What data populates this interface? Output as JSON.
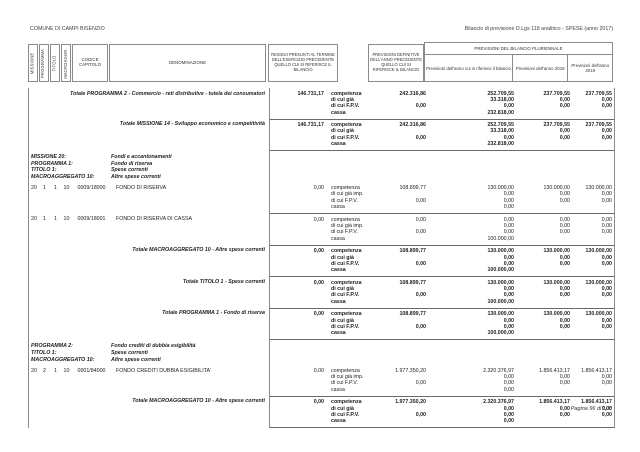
{
  "page": {
    "header_left": "COMUNE DI CAMPI BISENZIO",
    "header_right": "Bilancio di previsione D.Lgs 118 analitico - SPESE (anno 2017)",
    "footer": "Pagina 96 di 103"
  },
  "table": {
    "columns": {
      "missione": "MISSIONE",
      "programma": "PROGRAMMA",
      "titolo": "TITOLO",
      "macroaggr": "MACROAGGR.",
      "codice": "CODICE CAPITOLO",
      "denominazione": "DENOMINAZIONE",
      "residui": "RESIDUI PRESUNTI AL TERMINE DELL'ESERCIZIO PRECEDENTE QUELLO CUI SI RIFERISCE IL BILANCIO",
      "previsioni_definitive": "PREVISIONI DEFINITIVE DELL'ANNO PRECEDENTE QUELLO CUI SI RIFERISCE IL BILANCIO",
      "pluriennale": "PREVISIONI DEL BILANCIO PLURIENNALE",
      "anno_riferimento": "Previsioni dell'anno cui si riferisce il bilancio",
      "anno_2018": "Previsioni dell'anno 2018",
      "anno_2019": "Previsioni dell'anno 2019"
    },
    "rows": [
      {
        "type": "total",
        "den": "Totale PROGRAMMA 2 - Commercio - reti distributive - tutela dei consumatori",
        "residui": "146.731,17",
        "rt": false,
        "rb": false,
        "lines": [
          {
            "label": "competenza",
            "v1": "242.316,86",
            "v2": "252.709,55",
            "v3": "237.709,55",
            "v4": "237.709,55"
          },
          {
            "label": "di cui già",
            "v1": "",
            "v2": "33.318,00",
            "v3": "0,00",
            "v4": "0,00"
          },
          {
            "label": "di cui F.P.V.",
            "v1": "0,00",
            "v2": "0,00",
            "v3": "0,00",
            "v4": "0,00"
          },
          {
            "label": "cassa",
            "v1": "",
            "v2": "232.818,00",
            "v3": "",
            "v4": ""
          }
        ]
      },
      {
        "type": "total",
        "den": "Totale MISSIONE 14 - Sviluppo economico e competitività",
        "residui": "146.731,17",
        "rt": true,
        "rb": true,
        "lines": [
          {
            "label": "competenza",
            "v1": "242.316,86",
            "v2": "252.709,55",
            "v3": "237.709,55",
            "v4": "237.709,55"
          },
          {
            "label": "di cui già",
            "v1": "",
            "v2": "33.318,00",
            "v3": "0,00",
            "v4": "0,00"
          },
          {
            "label": "di cui F.P.V.",
            "v1": "0,00",
            "v2": "0,00",
            "v3": "0,00",
            "v4": "0,00"
          },
          {
            "label": "cassa",
            "v1": "",
            "v2": "232.818,00",
            "v3": "",
            "v4": ""
          }
        ]
      },
      {
        "type": "section",
        "pairs": [
          [
            "MISSIONE 20:",
            "Fondi e accantonamenti"
          ],
          [
            "PROGRAMMA 1:",
            "Fondo di riserva"
          ],
          [
            "TITOLO 1:",
            "Spese correnti"
          ],
          [
            "MACROAGGREGATO 10:",
            "Altre spese correnti"
          ]
        ]
      },
      {
        "type": "detail",
        "m": "20",
        "p": "1",
        "t": "1",
        "ma": "10",
        "cap": "0009/18000",
        "den": "FONDO DI RISERVA",
        "residui": "0,00",
        "rt": false,
        "rb": false,
        "lines": [
          {
            "label": "competenza",
            "v1": "108.899,77",
            "v2": "130.000,00",
            "v3": "130.000,00",
            "v4": "130.000,00"
          },
          {
            "label": "di cui già imp.",
            "v1": "",
            "v2": "0,00",
            "v3": "0,00",
            "v4": "0,00"
          },
          {
            "label": "di cui F.P.V.",
            "v1": "0,00",
            "v2": "0,00",
            "v3": "0,00",
            "v4": "0,00"
          },
          {
            "label": "cassa",
            "v1": "",
            "v2": "0,00",
            "v3": "",
            "v4": ""
          }
        ]
      },
      {
        "type": "detail",
        "m": "20",
        "p": "1",
        "t": "1",
        "ma": "10",
        "cap": "0009/18001",
        "den": "FONDO DI RISERVA DI CASSA",
        "residui": "0,00",
        "rt": true,
        "rb": false,
        "lines": [
          {
            "label": "competenza",
            "v1": "0,00",
            "v2": "0,00",
            "v3": "0,00",
            "v4": "0,00"
          },
          {
            "label": "di cui già imp.",
            "v1": "",
            "v2": "0,00",
            "v3": "0,00",
            "v4": "0,00"
          },
          {
            "label": "di cui F.P.V.",
            "v1": "0,00",
            "v2": "0,00",
            "v3": "0,00",
            "v4": "0,00"
          },
          {
            "label": "cassa",
            "v1": "",
            "v2": "100.000,00",
            "v3": "",
            "v4": ""
          }
        ]
      },
      {
        "type": "total",
        "den": "Totale MACROAGGREGATO 10 - Altre spese correnti",
        "residui": "0,00",
        "rt": true,
        "rb": false,
        "lines": [
          {
            "label": "competenza",
            "v1": "108.899,77",
            "v2": "130.000,00",
            "v3": "130.000,00",
            "v4": "130.000,00"
          },
          {
            "label": "di cui già",
            "v1": "",
            "v2": "0,00",
            "v3": "0,00",
            "v4": "0,00"
          },
          {
            "label": "di cui F.P.V.",
            "v1": "0,00",
            "v2": "0,00",
            "v3": "0,00",
            "v4": "0,00"
          },
          {
            "label": "cassa",
            "v1": "",
            "v2": "100.000,00",
            "v3": "",
            "v4": ""
          }
        ]
      },
      {
        "type": "total",
        "den": "Totale TITOLO 1 - Spese correnti",
        "residui": "0,00",
        "rt": true,
        "rb": false,
        "lines": [
          {
            "label": "competenza",
            "v1": "108.899,77",
            "v2": "130.000,00",
            "v3": "130.000,00",
            "v4": "130.000,00"
          },
          {
            "label": "di cui già",
            "v1": "",
            "v2": "0,00",
            "v3": "0,00",
            "v4": "0,00"
          },
          {
            "label": "di cui F.P.V.",
            "v1": "0,00",
            "v2": "0,00",
            "v3": "0,00",
            "v4": "0,00"
          },
          {
            "label": "cassa",
            "v1": "",
            "v2": "100.000,00",
            "v3": "",
            "v4": ""
          }
        ]
      },
      {
        "type": "total",
        "den": "Totale PROGRAMMA 1 - Fondo di riserva",
        "residui": "0,00",
        "rt": true,
        "rb": true,
        "lines": [
          {
            "label": "competenza",
            "v1": "108.899,77",
            "v2": "130.000,00",
            "v3": "130.000,00",
            "v4": "130.000,00"
          },
          {
            "label": "di cui già",
            "v1": "",
            "v2": "0,00",
            "v3": "0,00",
            "v4": "0,00"
          },
          {
            "label": "di cui F.P.V.",
            "v1": "0,00",
            "v2": "0,00",
            "v3": "0,00",
            "v4": "0,00"
          },
          {
            "label": "cassa",
            "v1": "",
            "v2": "100.000,00",
            "v3": "",
            "v4": ""
          }
        ]
      },
      {
        "type": "section",
        "pairs": [
          [
            "PROGRAMMA 2:",
            "Fondo crediti di dubbia esigibilità"
          ],
          [
            "TITOLO 1:",
            "Spese correnti"
          ],
          [
            "MACROAGGREGATO 10:",
            "Altre spese correnti"
          ]
        ]
      },
      {
        "type": "detail",
        "m": "20",
        "p": "2",
        "t": "1",
        "ma": "10",
        "cap": "0001/84000",
        "den": "FONDO CREDITI DUBBIA ESIGIBILITA'",
        "residui": "0,00",
        "rt": false,
        "rb": false,
        "lines": [
          {
            "label": "competenza",
            "v1": "1.977.350,20",
            "v2": "2.320.376,97",
            "v3": "1.856.413,17",
            "v4": "1.856.413,17"
          },
          {
            "label": "di cui già imp.",
            "v1": "",
            "v2": "0,00",
            "v3": "0,00",
            "v4": "0,00"
          },
          {
            "label": "di cui F.P.V.",
            "v1": "0,00",
            "v2": "0,00",
            "v3": "0,00",
            "v4": "0,00"
          },
          {
            "label": "cassa",
            "v1": "",
            "v2": "0,00",
            "v3": "",
            "v4": ""
          }
        ]
      },
      {
        "type": "total",
        "den": "Totale MACROAGGREGATO 10 - Altre spese correnti",
        "residui": "0,00",
        "rt": true,
        "rb": true,
        "lines": [
          {
            "label": "competenza",
            "v1": "1.977.350,20",
            "v2": "2.320.376,97",
            "v3": "1.856.413,17",
            "v4": "1.856.413,17"
          },
          {
            "label": "di cui già",
            "v1": "",
            "v2": "0,00",
            "v3": "0,00",
            "v4": "0,00"
          },
          {
            "label": "di cui F.P.V.",
            "v1": "0,00",
            "v2": "0,00",
            "v3": "0,00",
            "v4": "0,00"
          },
          {
            "label": "cassa",
            "v1": "",
            "v2": "0,00",
            "v3": "",
            "v4": ""
          }
        ]
      }
    ]
  }
}
